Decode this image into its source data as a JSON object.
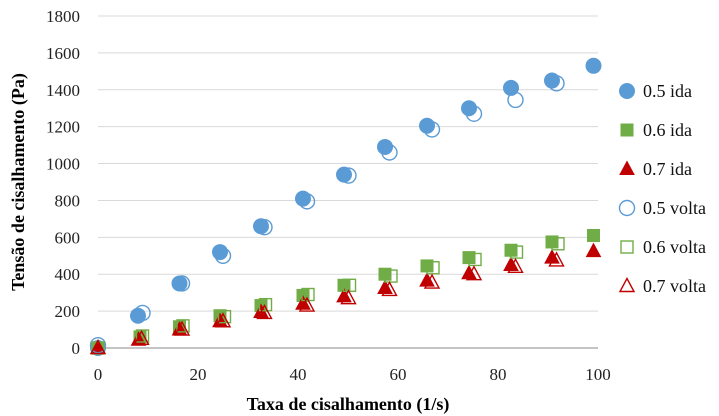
{
  "chart_data": {
    "type": "scatter",
    "title": "",
    "xlabel": "Taxa de cisalhamento (1/s)",
    "ylabel": "Tensão de cisalhamento (Pa)",
    "xlim": [
      0,
      100
    ],
    "ylim": [
      0,
      1800
    ],
    "xticks": [
      0,
      20,
      40,
      60,
      80,
      100
    ],
    "yticks": [
      0,
      200,
      400,
      600,
      800,
      1000,
      1200,
      1400,
      1600,
      1800
    ],
    "grid": "horizontal",
    "legend_position": "right",
    "series": [
      {
        "name": "0.5 ida",
        "marker": "circle-filled",
        "color": "#5b9bd5",
        "x": [
          0,
          8,
          16.3,
          24.4,
          32.6,
          41,
          49.2,
          57.4,
          65.8,
          74.2,
          82.6,
          90.8,
          99.1
        ],
        "y": [
          0,
          175,
          350,
          520,
          660,
          810,
          940,
          1090,
          1205,
          1300,
          1410,
          1450,
          1530
        ]
      },
      {
        "name": "0.6 ida",
        "marker": "square-filled",
        "color": "#70ad47",
        "x": [
          0,
          8.4,
          16.3,
          24.4,
          32.6,
          41,
          49.2,
          57.4,
          65.8,
          74.2,
          82.6,
          90.8,
          99.1
        ],
        "y": [
          0,
          60,
          115,
          175,
          230,
          285,
          340,
          400,
          445,
          490,
          530,
          575,
          610
        ]
      },
      {
        "name": "0.7 ida",
        "marker": "triangle-filled",
        "color": "#c00000",
        "x": [
          0,
          8.1,
          16.3,
          24.4,
          32.6,
          41,
          49.2,
          57.4,
          65.8,
          74.2,
          82.6,
          90.8,
          99.1
        ],
        "y": [
          0,
          45,
          100,
          145,
          195,
          240,
          280,
          325,
          365,
          405,
          450,
          490,
          525
        ]
      },
      {
        "name": "0.5 volta",
        "marker": "circle-open",
        "color": "#5b9bd5",
        "x": [
          0,
          8.9,
          16.8,
          25,
          33.3,
          41.8,
          50.1,
          58.3,
          66.8,
          75.2,
          83.5,
          91.7
        ],
        "y": [
          15,
          190,
          350,
          500,
          655,
          795,
          935,
          1060,
          1185,
          1270,
          1345,
          1435
        ]
      },
      {
        "name": "0.6 volta",
        "marker": "square-open",
        "color": "#70ad47",
        "x": [
          0,
          8.9,
          17,
          25.3,
          33.5,
          42,
          50.3,
          58.6,
          67,
          75.4,
          83.7,
          92
        ],
        "y": [
          0,
          65,
          120,
          170,
          235,
          290,
          340,
          390,
          435,
          480,
          520,
          565
        ]
      },
      {
        "name": "0.7 volta",
        "marker": "triangle-open",
        "color": "#c00000",
        "x": [
          0,
          8.7,
          16.8,
          25,
          33.3,
          41.8,
          50.1,
          58.3,
          66.8,
          75.2,
          83.5,
          91.7
        ],
        "y": [
          0,
          50,
          100,
          145,
          190,
          230,
          270,
          315,
          355,
          400,
          440,
          475
        ]
      }
    ]
  }
}
